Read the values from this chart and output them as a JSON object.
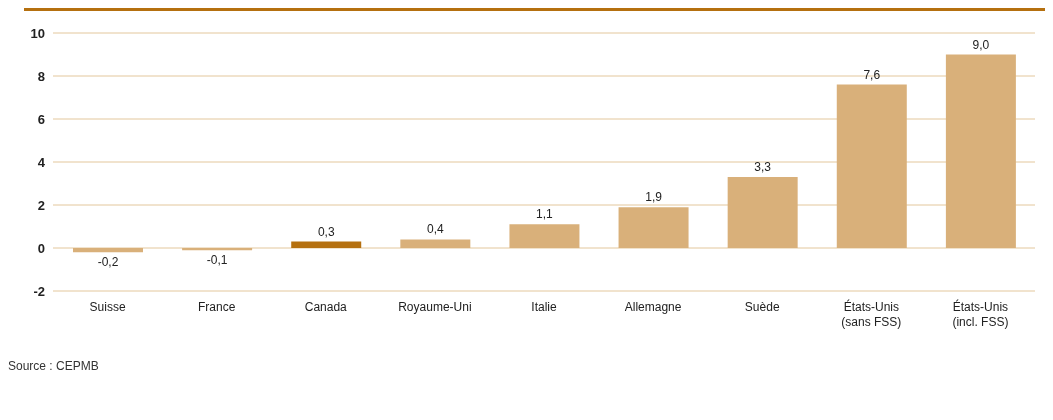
{
  "chart_data": {
    "type": "bar",
    "categories": [
      "Suisse",
      "France",
      "Canada",
      "Royaume-Uni",
      "Italie",
      "Allemagne",
      "Suède",
      "États-Unis\n(sans FSS)",
      "États-Unis\n(incl. FSS)"
    ],
    "values": [
      -0.2,
      -0.1,
      0.3,
      0.4,
      1.1,
      1.9,
      3.3,
      7.6,
      9.0
    ],
    "value_labels": [
      "-0,2",
      "-0,1",
      "0,3",
      "0,4",
      "1,1",
      "1,9",
      "3,3",
      "7,6",
      "9,0"
    ],
    "colors": [
      "#d9b07a",
      "#d9b07a",
      "#b5700f",
      "#d9b07a",
      "#d9b07a",
      "#d9b07a",
      "#d9b07a",
      "#d9b07a",
      "#d9b07a"
    ],
    "ylim": [
      -2,
      10
    ],
    "yticks": [
      -2,
      0,
      2,
      4,
      6,
      8,
      10
    ],
    "grid": "y",
    "annotations": [
      "Source : CEPMB"
    ]
  }
}
